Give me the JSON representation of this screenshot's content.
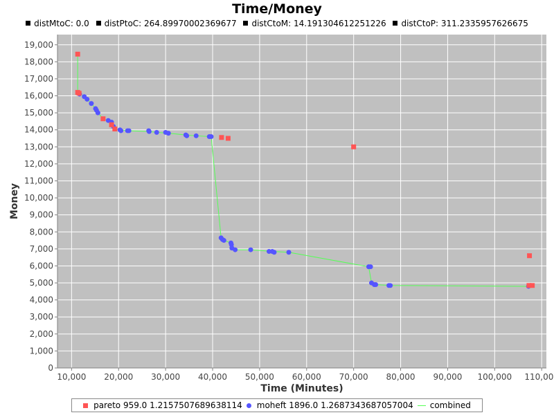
{
  "chart_data": {
    "type": "scatter",
    "title": "Time/Money",
    "subtitle_items": [
      "distMtoC: 0.0",
      "distPtoC: 264.89970002369677",
      "distCtoM: 14.191304612251226",
      "distCtoP: 311.2335957626675"
    ],
    "xlabel": "Time (Minutes)",
    "ylabel": "Money",
    "xlim": [
      7000,
      111000
    ],
    "ylim": [
      0,
      19600
    ],
    "x_ticks": [
      10000,
      20000,
      30000,
      40000,
      50000,
      60000,
      70000,
      80000,
      90000,
      100000,
      110000
    ],
    "x_tick_labels": [
      "10,000",
      "20,000",
      "30,000",
      "40,000",
      "50,000",
      "60,000",
      "70,000",
      "80,000",
      "90,000",
      "100,000",
      "110,000"
    ],
    "y_ticks": [
      0,
      1000,
      2000,
      3000,
      4000,
      5000,
      6000,
      7000,
      8000,
      9000,
      10000,
      11000,
      12000,
      13000,
      14000,
      15000,
      16000,
      17000,
      18000,
      19000
    ],
    "y_tick_labels": [
      "0",
      "1,000",
      "2,000",
      "3,000",
      "4,000",
      "5,000",
      "6,000",
      "7,000",
      "8,000",
      "9,000",
      "10,000",
      "11,000",
      "12,000",
      "13,000",
      "14,000",
      "15,000",
      "16,000",
      "17,000",
      "18,000",
      "19,000"
    ],
    "grid": true,
    "legend_position": "bottom",
    "background": "#c0c0c0",
    "gridline_color": "#ffffff",
    "series": [
      {
        "name": "pareto 959.0 1.2157507689638114",
        "marker": "square",
        "color": "#ff5555",
        "points": [
          [
            11300,
            18450
          ],
          [
            11300,
            16200
          ],
          [
            11600,
            16150
          ],
          [
            16700,
            14650
          ],
          [
            18500,
            14300
          ],
          [
            19200,
            14050
          ],
          [
            41900,
            13550
          ],
          [
            43300,
            13500
          ],
          [
            70000,
            13000
          ],
          [
            107400,
            6600
          ],
          [
            107300,
            4850
          ],
          [
            108000,
            4850
          ]
        ]
      },
      {
        "name": "moheft 1896.0 1.2687343687057004",
        "marker": "circle",
        "color": "#5555ff",
        "points": [
          [
            11700,
            16100
          ],
          [
            12700,
            15950
          ],
          [
            13300,
            15800
          ],
          [
            14200,
            15550
          ],
          [
            15100,
            15250
          ],
          [
            15300,
            15150
          ],
          [
            15600,
            15000
          ],
          [
            17800,
            14550
          ],
          [
            18500,
            14450
          ],
          [
            18900,
            14200
          ],
          [
            20300,
            14000
          ],
          [
            20500,
            13950
          ],
          [
            21900,
            13950
          ],
          [
            22200,
            13950
          ],
          [
            26400,
            13950
          ],
          [
            26500,
            13900
          ],
          [
            28100,
            13850
          ],
          [
            30000,
            13850
          ],
          [
            30600,
            13800
          ],
          [
            34300,
            13700
          ],
          [
            34500,
            13650
          ],
          [
            36500,
            13650
          ],
          [
            39300,
            13600
          ],
          [
            39700,
            13600
          ],
          [
            41800,
            7650
          ],
          [
            42100,
            7550
          ],
          [
            42400,
            7500
          ],
          [
            43900,
            7350
          ],
          [
            44000,
            7250
          ],
          [
            44100,
            7050
          ],
          [
            44800,
            6950
          ],
          [
            48100,
            6950
          ],
          [
            52000,
            6850
          ],
          [
            52700,
            6850
          ],
          [
            53100,
            6800
          ],
          [
            56200,
            6800
          ],
          [
            73200,
            5950
          ],
          [
            73600,
            5950
          ],
          [
            73800,
            5000
          ],
          [
            74400,
            4900
          ],
          [
            74700,
            4900
          ],
          [
            77500,
            4850
          ],
          [
            77800,
            4850
          ],
          [
            107200,
            4800
          ]
        ]
      },
      {
        "name": "combined",
        "marker": "line",
        "color": "#55ff55",
        "points": [
          [
            11300,
            18450
          ],
          [
            11300,
            16200
          ],
          [
            11700,
            16100
          ],
          [
            12700,
            15950
          ],
          [
            13300,
            15800
          ],
          [
            14200,
            15550
          ],
          [
            15100,
            15250
          ],
          [
            15600,
            15000
          ],
          [
            16700,
            14650
          ],
          [
            17800,
            14550
          ],
          [
            18500,
            14300
          ],
          [
            19200,
            14050
          ],
          [
            20300,
            14000
          ],
          [
            22200,
            13950
          ],
          [
            26500,
            13900
          ],
          [
            28100,
            13850
          ],
          [
            30600,
            13800
          ],
          [
            34300,
            13700
          ],
          [
            36500,
            13650
          ],
          [
            39700,
            13600
          ],
          [
            41800,
            7650
          ],
          [
            42400,
            7500
          ],
          [
            43900,
            7350
          ],
          [
            44100,
            7050
          ],
          [
            44800,
            6950
          ],
          [
            48100,
            6950
          ],
          [
            52700,
            6850
          ],
          [
            56200,
            6800
          ],
          [
            73200,
            5950
          ],
          [
            73800,
            5000
          ],
          [
            74700,
            4900
          ],
          [
            77800,
            4850
          ],
          [
            107200,
            4800
          ],
          [
            108000,
            4850
          ]
        ]
      }
    ]
  }
}
